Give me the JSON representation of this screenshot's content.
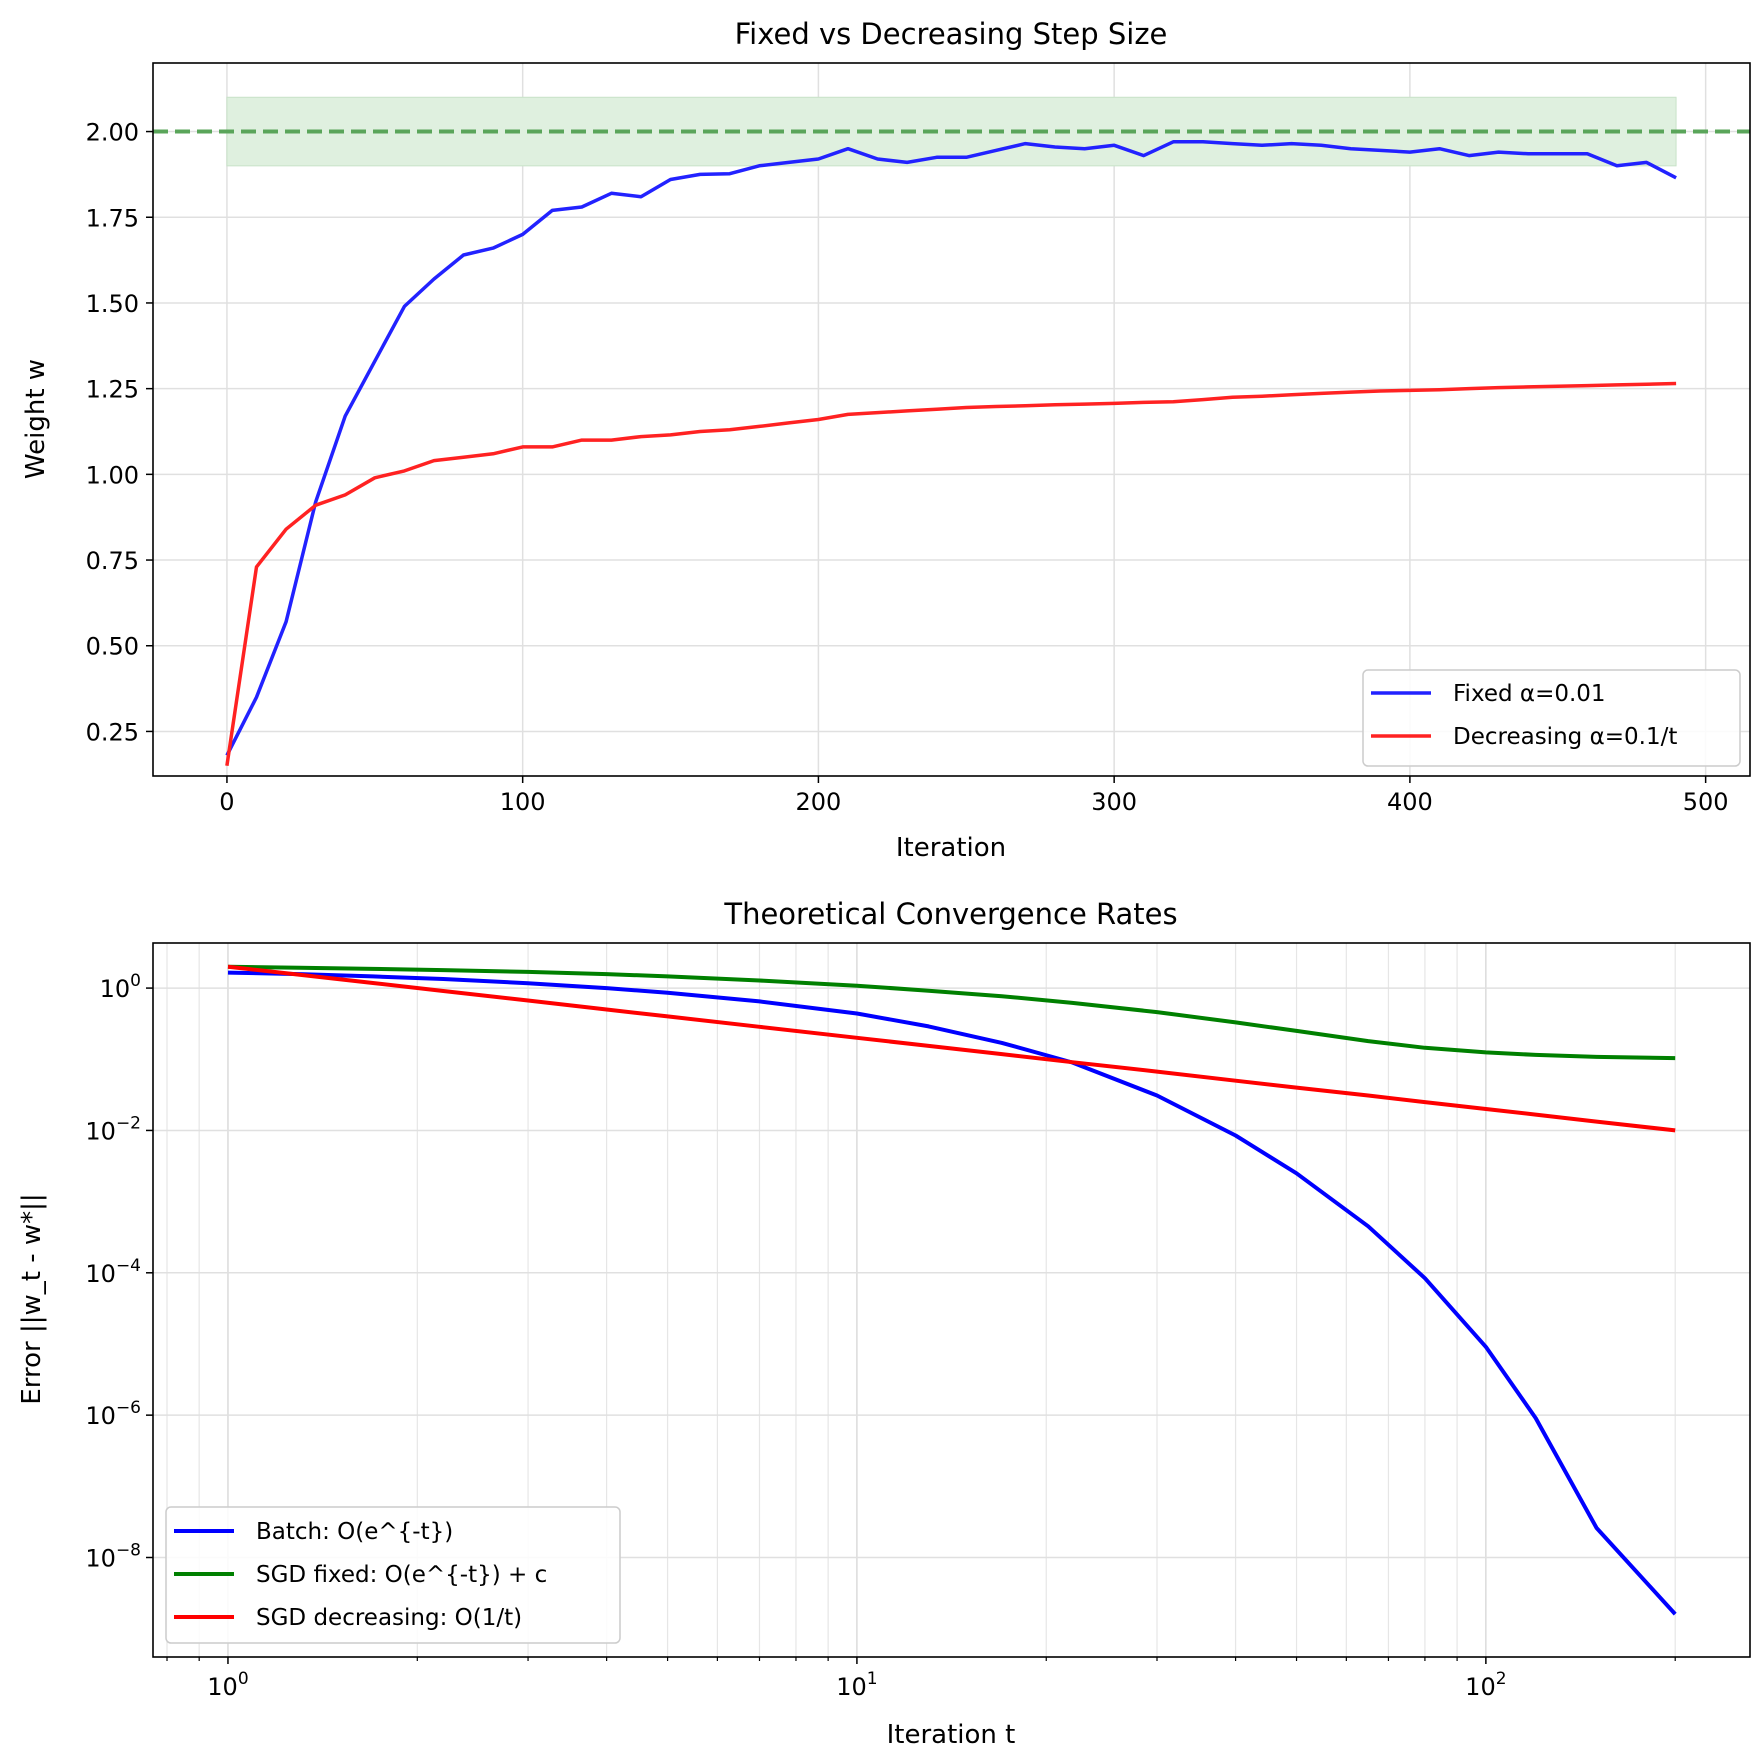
{
  "colors": {
    "fixed": "#2222ff",
    "decreasing": "#ff2222",
    "batch": "#0000ff",
    "sgd_fixed": "#008000",
    "sgd_decreasing": "#ff0000",
    "target": "#5aa55a",
    "band": "#dff0df"
  },
  "chart_data": [
    {
      "type": "line",
      "title": "Fixed vs Decreasing Step Size",
      "xlabel": "Iteration",
      "ylabel": "Weight w",
      "xlim": [
        -25,
        515
      ],
      "ylim": [
        0.12,
        2.2
      ],
      "xticks": [
        0,
        100,
        200,
        300,
        400,
        500
      ],
      "xtick_labels": [
        "0",
        "100",
        "200",
        "300",
        "400",
        "500"
      ],
      "yticks": [
        0.25,
        0.5,
        0.75,
        1.0,
        1.25,
        1.5,
        1.75,
        2.0
      ],
      "ytick_labels": [
        "0.25",
        "0.50",
        "0.75",
        "1.00",
        "1.25",
        "1.50",
        "1.75",
        "2.00"
      ],
      "grid": true,
      "legend_position": "lower-right",
      "target_line": 2.0,
      "target_band": [
        1.9,
        2.1
      ],
      "x": [
        0,
        10,
        20,
        30,
        40,
        50,
        60,
        70,
        80,
        90,
        100,
        110,
        120,
        130,
        140,
        150,
        160,
        170,
        180,
        190,
        200,
        210,
        220,
        230,
        240,
        250,
        260,
        270,
        280,
        290,
        300,
        310,
        320,
        330,
        340,
        350,
        360,
        370,
        380,
        390,
        400,
        410,
        420,
        430,
        440,
        450,
        460,
        470,
        480,
        490
      ],
      "series": [
        {
          "name": "Fixed α=0.01",
          "color_key": "fixed",
          "values": [
            0.18,
            0.35,
            0.57,
            0.92,
            1.17,
            1.33,
            1.49,
            1.57,
            1.64,
            1.66,
            1.7,
            1.77,
            1.78,
            1.82,
            1.81,
            1.86,
            1.875,
            1.877,
            1.9,
            1.91,
            1.92,
            1.95,
            1.92,
            1.91,
            1.925,
            1.925,
            1.945,
            1.965,
            1.955,
            1.95,
            1.96,
            1.93,
            1.97,
            1.97,
            1.965,
            1.96,
            1.965,
            1.96,
            1.95,
            1.945,
            1.94,
            1.95,
            1.93,
            1.94,
            1.935,
            1.935,
            1.935,
            1.9,
            1.91,
            1.865
          ]
        },
        {
          "name": "Decreasing α=0.1/t",
          "color_key": "decreasing",
          "values": [
            0.15,
            0.73,
            0.84,
            0.91,
            0.94,
            0.99,
            1.01,
            1.04,
            1.05,
            1.06,
            1.08,
            1.08,
            1.1,
            1.1,
            1.11,
            1.115,
            1.125,
            1.13,
            1.14,
            1.15,
            1.16,
            1.175,
            1.18,
            1.185,
            1.19,
            1.195,
            1.198,
            1.2,
            1.203,
            1.205,
            1.207,
            1.21,
            1.212,
            1.218,
            1.225,
            1.228,
            1.232,
            1.236,
            1.24,
            1.243,
            1.245,
            1.247,
            1.25,
            1.253,
            1.255,
            1.257,
            1.259,
            1.261,
            1.263,
            1.265
          ]
        }
      ]
    },
    {
      "type": "line",
      "title": "Theoretical Convergence Rates",
      "xlabel": "Iteration t",
      "ylabel": "Error ||w_t - w*||",
      "xscale": "log",
      "yscale": "log",
      "xlim": [
        0.76,
        263
      ],
      "ylim": [
        4e-10,
        4.3
      ],
      "xticks": [
        1,
        10,
        100
      ],
      "xtick_base": [
        "10",
        "10",
        "10"
      ],
      "xtick_exp": [
        "0",
        "1",
        "2"
      ],
      "yticks": [
        1,
        0.01,
        0.0001,
        1e-06,
        1e-08
      ],
      "ytick_base": [
        "10",
        "10",
        "10",
        "10",
        "10"
      ],
      "ytick_exp": [
        "0",
        "−2",
        "−4",
        "−6",
        "−8"
      ],
      "grid": true,
      "legend_position": "lower-left",
      "x": [
        1,
        1.3,
        1.7,
        2.2,
        3,
        4,
        5,
        7,
        10,
        13,
        17,
        22,
        30,
        40,
        50,
        65,
        80,
        100,
        120,
        150,
        200
      ],
      "series": [
        {
          "name": "Batch: O(e^{-t})",
          "color_key": "batch",
          "values": [
            1.65,
            1.57,
            1.46,
            1.34,
            1.17,
            1.0,
            0.86,
            0.65,
            0.44,
            0.29,
            0.17,
            0.09,
            0.031,
            0.0085,
            0.0025,
            0.00045,
            8.4e-05,
            9.1e-06,
            9.1e-07,
            2.6e-08,
            1.6e-09
          ]
        },
        {
          "name": "SGD fixed: O(e^{-t}) + c",
          "color_key": "sgd_fixed",
          "values": [
            2.0,
            1.93,
            1.86,
            1.79,
            1.69,
            1.57,
            1.46,
            1.28,
            1.08,
            0.92,
            0.77,
            0.62,
            0.46,
            0.33,
            0.25,
            0.18,
            0.145,
            0.125,
            0.115,
            0.108,
            0.104
          ]
        },
        {
          "name": "SGD decreasing: O(1/t)",
          "color_key": "sgd_decreasing",
          "values": [
            2.0,
            1.54,
            1.18,
            0.91,
            0.67,
            0.5,
            0.4,
            0.286,
            0.2,
            0.154,
            0.118,
            0.091,
            0.067,
            0.05,
            0.04,
            0.031,
            0.025,
            0.02,
            0.0167,
            0.0133,
            0.01
          ]
        }
      ]
    }
  ]
}
